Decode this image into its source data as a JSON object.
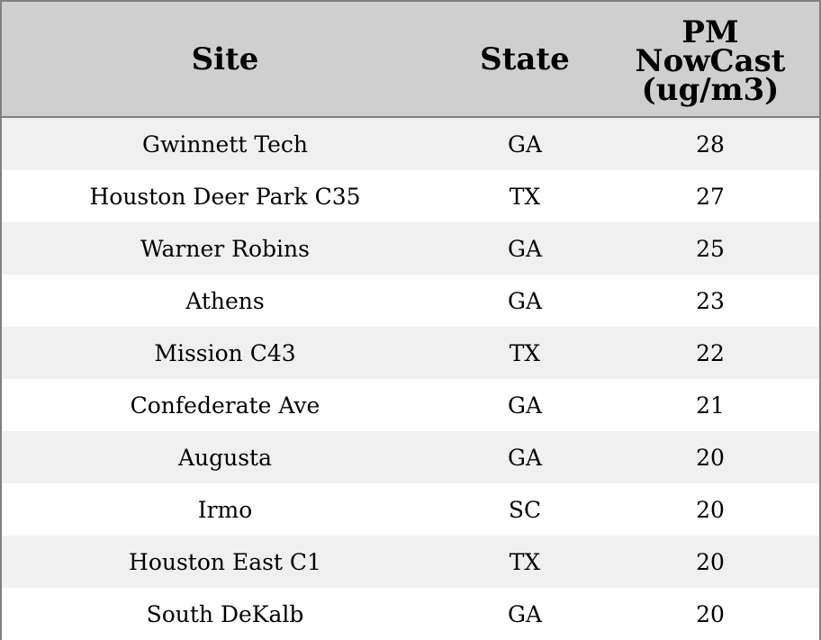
{
  "chart_data": {
    "type": "table",
    "columns": [
      "Site",
      "State",
      "PM\nNowCast\n(ug/m3)"
    ],
    "columns_lines": [
      [
        "Site"
      ],
      [
        "State"
      ],
      [
        "PM",
        "NowCast",
        "(ug/m3)"
      ]
    ],
    "rows": [
      [
        "Gwinnett Tech",
        "GA",
        "28"
      ],
      [
        "Houston Deer Park C35",
        "TX",
        "27"
      ],
      [
        "Warner Robins",
        "GA",
        "25"
      ],
      [
        "Athens",
        "GA",
        "23"
      ],
      [
        "Mission C43",
        "TX",
        "22"
      ],
      [
        "Confederate Ave",
        "GA",
        "21"
      ],
      [
        "Augusta",
        "GA",
        "20"
      ],
      [
        "Irmo",
        "SC",
        "20"
      ],
      [
        "Houston East C1",
        "TX",
        "20"
      ],
      [
        "South DeKalb",
        "GA",
        "20"
      ]
    ]
  },
  "colors": {
    "header_bg": "#cfcfcf",
    "row_alt_bg": "#f0f0f0",
    "row_bg": "#ffffff",
    "border": "#808080"
  }
}
